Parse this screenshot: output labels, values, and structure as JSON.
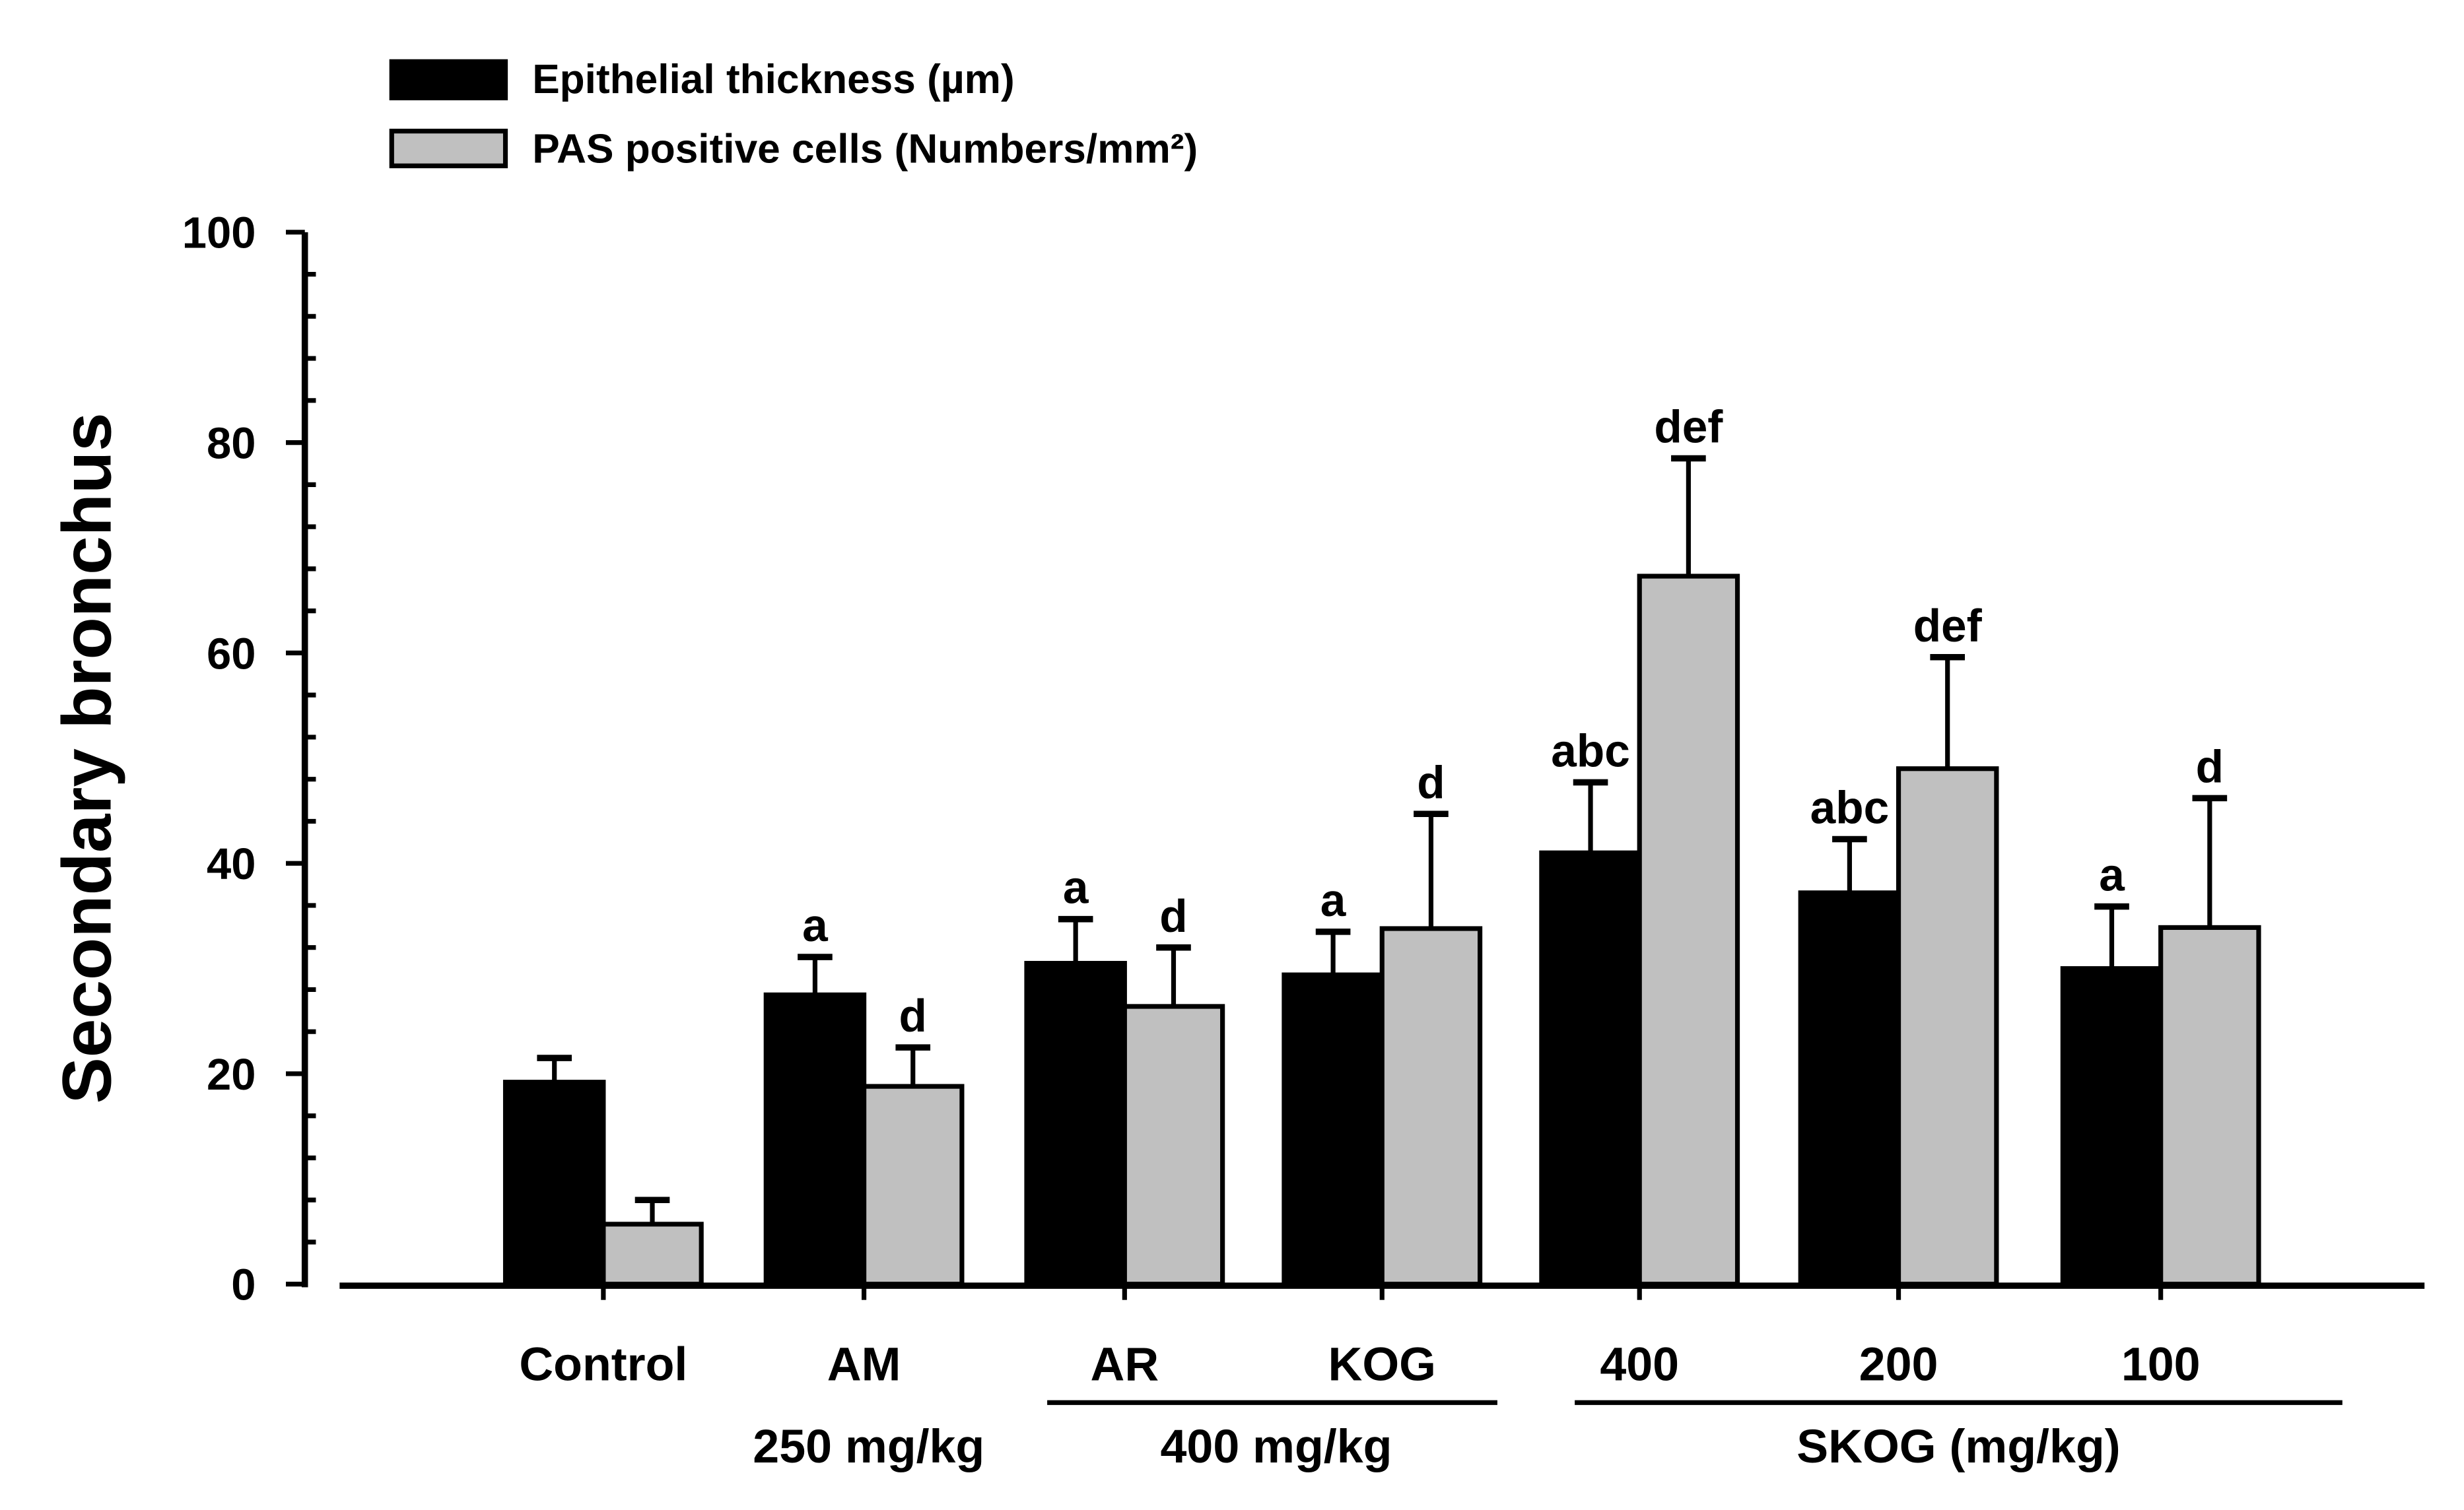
{
  "chart_data": {
    "type": "bar",
    "title": "",
    "xlabel": "",
    "ylabel": "Secondary bronchus",
    "ylim": [
      0,
      100
    ],
    "yticks": [
      "0",
      "20",
      "40",
      "60",
      "80",
      "100"
    ],
    "grid": false,
    "legend_position": "top-left",
    "categories": [
      "Control",
      "AM",
      "AR",
      "KOG",
      "400",
      "200",
      "100"
    ],
    "group_labels": [
      {
        "label": "250 mg/kg",
        "spans": [
          "AM"
        ]
      },
      {
        "label": "400 mg/kg",
        "spans": [
          "AR",
          "KOG"
        ]
      },
      {
        "label": "SKOG (mg/kg)",
        "spans": [
          "400",
          "200",
          "100"
        ]
      }
    ],
    "series": [
      {
        "name": "Epithelial thickness (µm)",
        "color": "#000000",
        "values": [
          19.2,
          27.5,
          30.5,
          29.4,
          41.0,
          37.2,
          30.0
        ],
        "errors": [
          2.3,
          3.6,
          4.2,
          4.1,
          6.7,
          5.1,
          5.9
        ],
        "annotations": [
          "",
          "a",
          "a",
          "a",
          "abc",
          "abc",
          "a"
        ]
      },
      {
        "name": "PAS positive cells (Numbers/mm²)",
        "color": "#c0c0c0",
        "values": [
          5.7,
          18.8,
          26.4,
          33.8,
          67.3,
          49.0,
          33.9
        ],
        "errors": [
          2.3,
          3.7,
          5.6,
          10.9,
          11.2,
          10.6,
          12.3
        ],
        "annotations": [
          "",
          "d",
          "d",
          "d",
          "def",
          "def",
          "d"
        ]
      }
    ]
  }
}
